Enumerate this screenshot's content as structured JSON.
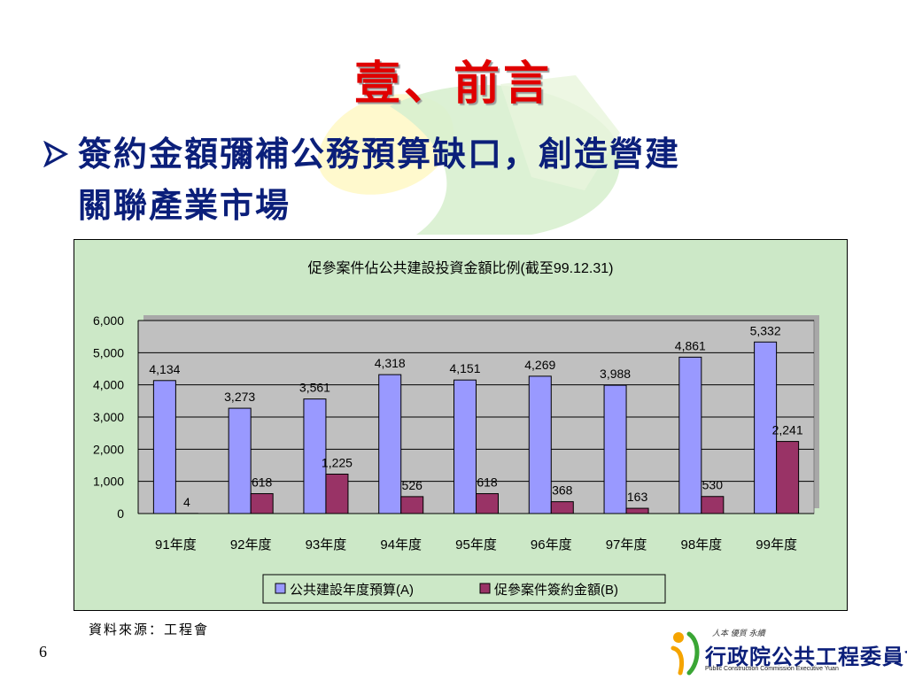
{
  "slide": {
    "title": "壹、前言",
    "bullet_line1": "簽約金額彌補公務預算缺口，創造營建",
    "bullet_line2": "關聯產業市場",
    "source": "資料來源：工程會",
    "page_number": "6"
  },
  "logo": {
    "motto": "人本 優質 永續",
    "name": "行政院公共工程委員會",
    "english": "Public Construction Commission Executive Yuan"
  },
  "icons": [
    "bullet-arrow-icon",
    "ministry-logo-icon"
  ],
  "chart_data": {
    "type": "bar",
    "title": "促參案件佔公共建設投資金額比例(截至99.12.31)",
    "categories": [
      "91年度",
      "92年度",
      "93年度",
      "94年度",
      "95年度",
      "96年度",
      "97年度",
      "98年度",
      "99年度"
    ],
    "series": [
      {
        "name": "公共建設年度預算(A)",
        "color": "#9999ff",
        "values": [
          4134,
          3273,
          3561,
          4318,
          4151,
          4269,
          3988,
          4861,
          5332
        ],
        "labels": [
          "4,134",
          "3,273",
          "3,561",
          "4,318",
          "4,151",
          "4,269",
          "3,988",
          "4,861",
          "5,332"
        ]
      },
      {
        "name": "促參案件簽約金額(B)",
        "color": "#993366",
        "values": [
          4,
          618,
          1225,
          526,
          618,
          368,
          163,
          530,
          2241
        ],
        "labels": [
          "4",
          "618",
          "1,225",
          "526",
          "618",
          "368",
          "163",
          "530",
          "2,241"
        ]
      }
    ],
    "ylim": [
      0,
      6000
    ],
    "yticks": [
      0,
      1000,
      2000,
      3000,
      4000,
      5000,
      6000
    ],
    "ytick_labels": [
      "0",
      "1,000",
      "2,000",
      "3,000",
      "4,000",
      "5,000",
      "6,000"
    ],
    "xlabel": "",
    "ylabel": "",
    "grid": true,
    "legend": "bottom",
    "chart_background": "#cce8c7",
    "plot_background": "#c0c0c0"
  }
}
